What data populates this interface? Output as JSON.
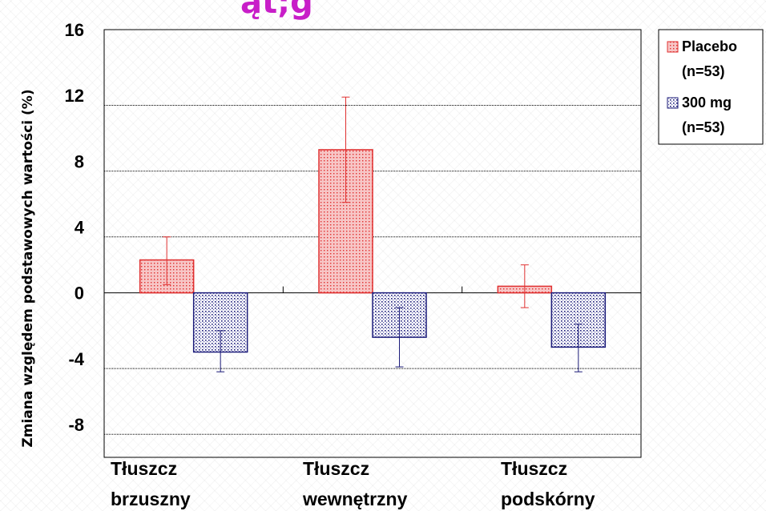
{
  "title_fragment": "ąt;g",
  "chart_data": {
    "type": "bar",
    "ylabel": "Zmiana względem podstawowych wartości (%)",
    "xlabel": "",
    "ylim": [
      -10,
      16
    ],
    "yticks": [
      16,
      12,
      8,
      4,
      0,
      -4,
      -8
    ],
    "grid": true,
    "categories": [
      {
        "line1": "Tłuszcz",
        "line2": "brzuszny"
      },
      {
        "line1": "Tłuszcz",
        "line2": "wewnętrzny"
      },
      {
        "line1": "Tłuszcz",
        "line2": "podskórny"
      }
    ],
    "series": [
      {
        "legend_line1": "Placebo",
        "legend_line2": "(n=53)",
        "color": "#e03030",
        "fill": "#f7b8b8",
        "values": [
          2.0,
          8.7,
          0.4
        ],
        "error_low": [
          0.5,
          5.5,
          -0.9
        ],
        "error_high": [
          3.4,
          11.9,
          1.7
        ]
      },
      {
        "legend_line1": "300 mg",
        "legend_line2": "(n=53)",
        "color": "#1c1c7a",
        "fill": "#9c9cd8",
        "values": [
          -3.6,
          -2.7,
          -3.3
        ],
        "error_low": [
          -4.8,
          -4.5,
          -4.8
        ],
        "error_high": [
          -2.3,
          -0.9,
          -1.9
        ]
      }
    ],
    "legend_position": "top-right"
  }
}
